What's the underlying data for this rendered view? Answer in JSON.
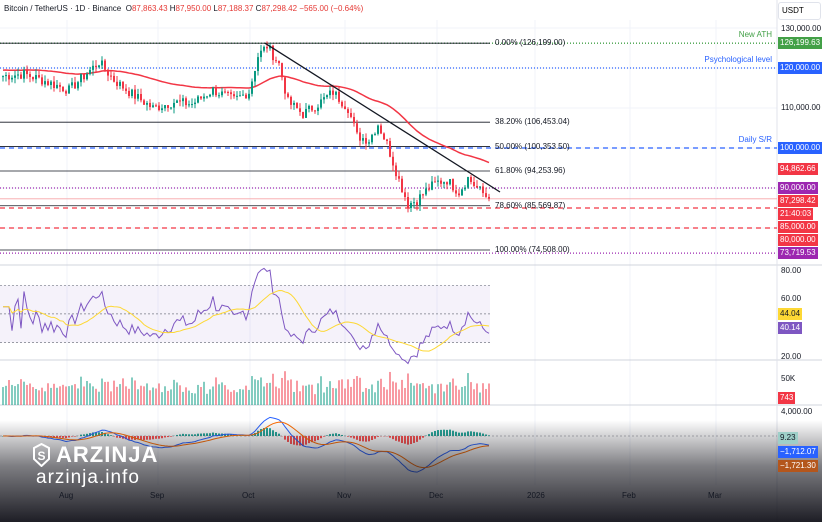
{
  "header": {
    "symbol": "Bitcoin / TetherUS · 1D · Binance",
    "o": "O",
    "o_val": "87,863.43",
    "h": "H",
    "h_val": "87,950.00",
    "l": "L",
    "l_val": "87,188.37",
    "c": "C",
    "c_val": "87,298.42",
    "change": "−565.00 (−0.64%)"
  },
  "currency": "USDT",
  "price_axis": [
    "130,000.00",
    "110,000.00"
  ],
  "tags": [
    {
      "text": "126,199.63",
      "price": 126199.63,
      "color": "#43a047"
    },
    {
      "text": "120,000.00",
      "price": 120000,
      "color": "#2962ff"
    },
    {
      "text": "100,000.00",
      "price": 100000,
      "color": "#2962ff"
    },
    {
      "text": "94,862.66",
      "price": 94862.66,
      "color": "#f23645"
    },
    {
      "text": "90,000.00",
      "price": 90000,
      "color": "#9c27b0"
    },
    {
      "text": "87,298.42",
      "price": 87298.42,
      "color": "#f23645"
    },
    {
      "text": "21:40:03",
      "price": 85000,
      "color": "#f23645",
      "offset": -9
    },
    {
      "text": "85,000.00",
      "price": 85000,
      "color": "#f23645",
      "offset": 9
    },
    {
      "text": "80,000.00",
      "price": 80000,
      "color": "#f23645"
    },
    {
      "text": "73,719.53",
      "price": 73719.53,
      "color": "#9c27b0"
    }
  ],
  "notes": [
    {
      "text": "New ATH",
      "price": 126199.63,
      "color": "#43a047"
    },
    {
      "text": "Psychological level",
      "price": 120000,
      "color": "#2962ff"
    },
    {
      "text": "Daily S/R",
      "price": 100000,
      "color": "#2962ff"
    }
  ],
  "fib": [
    {
      "text": "0.00% (126,199.00)",
      "price": 126199
    },
    {
      "text": "38.20% (106,453.04)",
      "price": 106453.04
    },
    {
      "text": "50.00% (100,353.50)",
      "price": 100353.5
    },
    {
      "text": "61.80% (94,253.96)",
      "price": 94253.96
    },
    {
      "text": "78.60% (85,569.87)",
      "price": 85569.87
    },
    {
      "text": "100.00% (74,508.00)",
      "price": 74508
    }
  ],
  "rsi": {
    "axis": [
      "80.00",
      "60.00",
      "20.00"
    ],
    "rsi_value": "44.04",
    "rsi_ma_value": "40.14"
  },
  "volume": {
    "axis": "50K",
    "value": "743"
  },
  "macd": {
    "axis": "4,000.00",
    "hist": "9.23",
    "macd": "−1,712.07",
    "signal": "−1,721.30"
  },
  "months": [
    "Aug",
    "Sep",
    "Oct",
    "Nov",
    "Dec",
    "2026",
    "Feb",
    "Mar"
  ],
  "watermark": {
    "brand": "ARZINJA",
    "site": "arzinja.info"
  },
  "chart_data": {
    "type": "candlestick",
    "title": "Bitcoin / TetherUS · 1D · Binance",
    "x_unit": "days since ~Jul 10",
    "y_unit": "USDT",
    "close_path": [
      [
        0,
        118000
      ],
      [
        7,
        118500
      ],
      [
        13,
        117000
      ],
      [
        22,
        114500
      ],
      [
        32,
        121500
      ],
      [
        37,
        117000
      ],
      [
        43,
        113500
      ],
      [
        50,
        110000
      ],
      [
        57,
        111500
      ],
      [
        63,
        111000
      ],
      [
        70,
        114500
      ],
      [
        77,
        112000
      ],
      [
        82,
        114000
      ],
      [
        85,
        123000
      ],
      [
        88,
        125500
      ],
      [
        92,
        121000
      ],
      [
        95,
        111500
      ],
      [
        100,
        108500
      ],
      [
        105,
        111000
      ],
      [
        110,
        114000
      ],
      [
        115,
        110000
      ],
      [
        118,
        103000
      ],
      [
        122,
        102000
      ],
      [
        125,
        106000
      ],
      [
        128,
        101000
      ],
      [
        132,
        92000
      ],
      [
        135,
        86000
      ],
      [
        138,
        87000
      ],
      [
        142,
        90000
      ],
      [
        145,
        91500
      ],
      [
        148,
        92000
      ],
      [
        152,
        89000
      ],
      [
        155,
        92500
      ],
      [
        158,
        90000
      ],
      [
        162,
        87298
      ]
    ],
    "ylim": [
      70000,
      132000
    ],
    "ma_color": "#f23645"
  }
}
